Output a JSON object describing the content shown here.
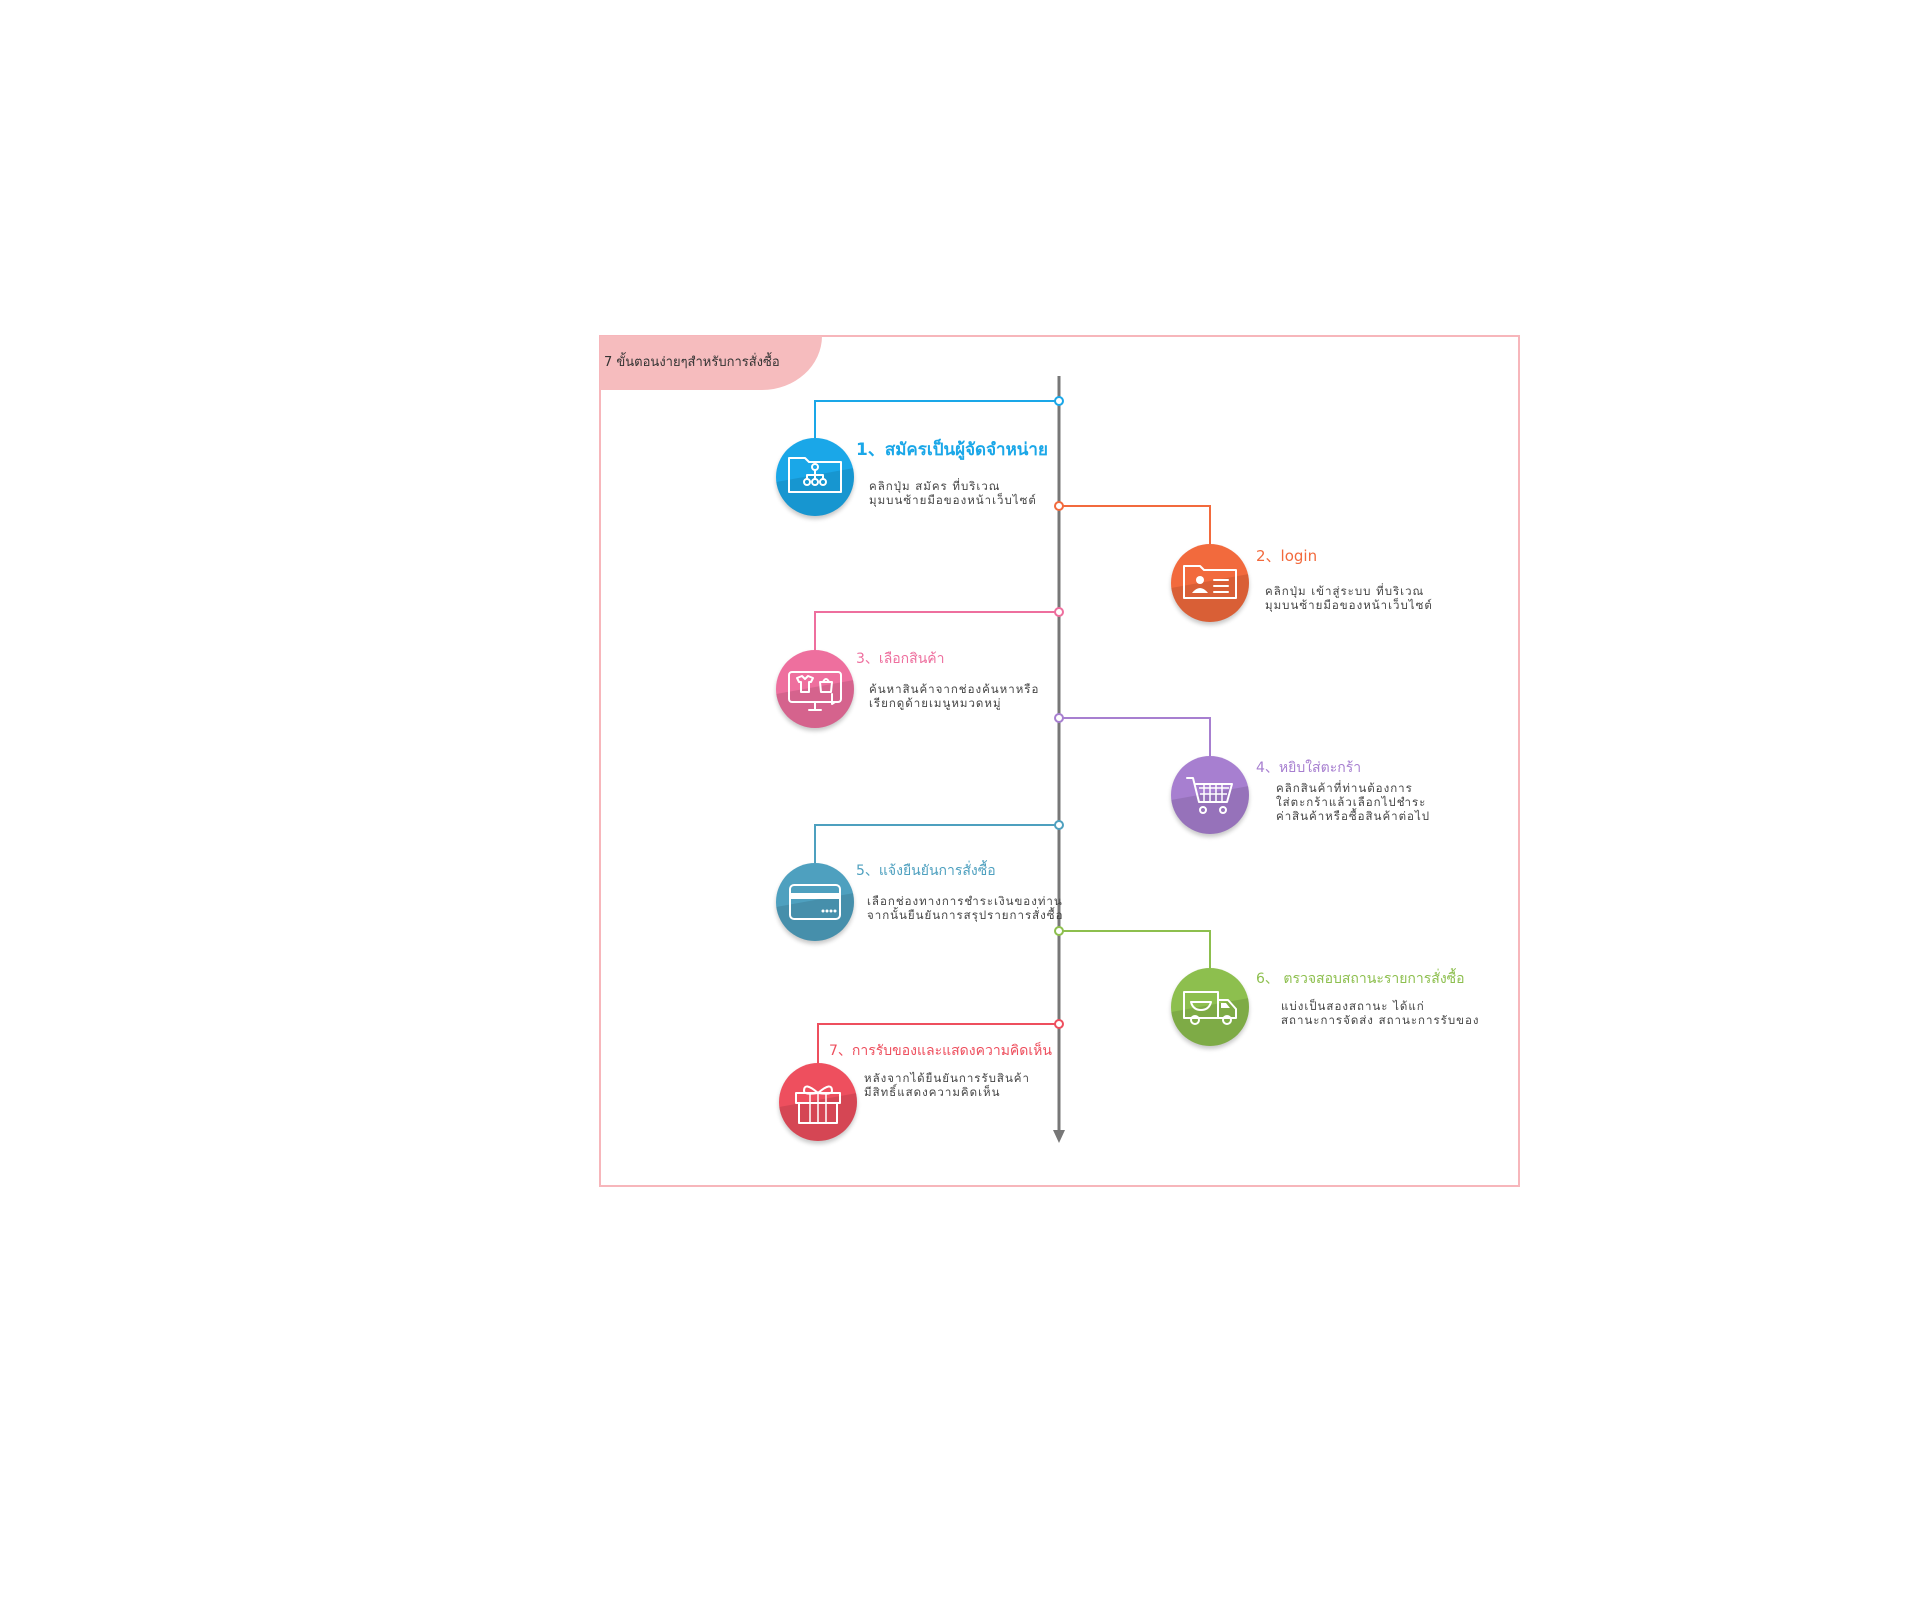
{
  "diagram": {
    "title": "7 ขั้นตอนง่ายๆสำหรับการสั่งซื้อ",
    "steps": [
      {
        "title": "1、สมัครเป็นผู้จัดจำหน่าย",
        "desc": "คลิกปุ่ม สมัคร ที่บริเวณ\nมุมบนซ้ายมือของหน้าเว็บไซต์",
        "color": "#1aa7e8",
        "icon": "network-folder-icon",
        "side": "left"
      },
      {
        "title": "2、login",
        "desc": "คลิกปุ่ม เข้าสู่ระบบ ที่บริเวณ\nมุมบนซ้ายมือของหน้าเว็บไซต์",
        "color": "#f26a3d",
        "icon": "id-card-icon",
        "side": "right"
      },
      {
        "title": "3、เลือกสินค้า",
        "desc": "ค้นหาสินค้าจากช่องค้นหาหรือ\nเรียกดูด้ายเมนูหมวดหมู่",
        "color": "#ee6f9e",
        "icon": "shopping-monitor-icon",
        "side": "left"
      },
      {
        "title": "4、หยิบใส่ตะกร้า",
        "desc": "คลิกสินค้าที่ท่านต้องการ\nใส่ตะกร้าแล้วเลือกไปชำระ\nค่าสินค้าหรือซื้อสินค้าต่อไป",
        "color": "#a77fd0",
        "icon": "shopping-cart-icon",
        "side": "right"
      },
      {
        "title": "5、แจ้งยืนยันการสั่งซื้อ",
        "desc": "เลือกช่องทางการชำระเงินของท่าน\nจากนั้นยืนยันการสรุปรายการสั่งซื้อ",
        "color": "#4ea0bf",
        "icon": "credit-card-icon",
        "side": "left"
      },
      {
        "title": "6、 ตรวจสอบสถานะรายการสั่งซื้อ",
        "desc": "แบ่งเป็นสองสถานะ ได้แก่\nสถานะการจัดส่ง สถานะการรับของ",
        "color": "#8dbf4e",
        "icon": "delivery-truck-icon",
        "side": "right"
      },
      {
        "title": "7、การรับของและแสดงความคิดเห็น",
        "desc": "หลังจากได้ยืนยันการรับสินค้า\nมีสิทธิ์แสดงความคิดเห็น",
        "color": "#ee4f5e",
        "icon": "gift-box-icon",
        "side": "left"
      }
    ]
  }
}
